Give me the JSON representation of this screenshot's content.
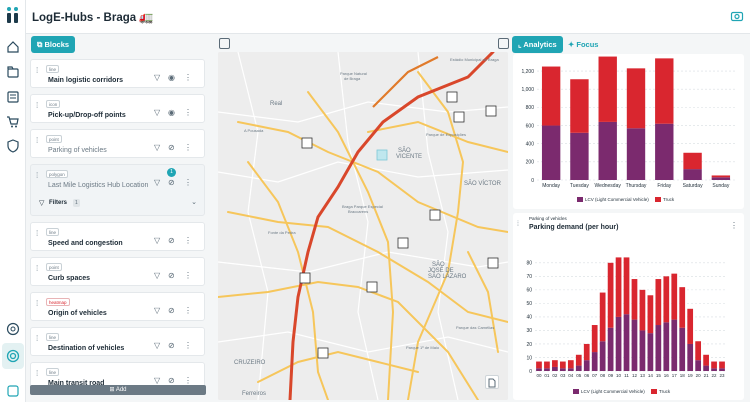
{
  "app": {
    "title": "LogE-Hubs - Braga 🚛"
  },
  "nav": {
    "icons": [
      "home-icon",
      "folders-icon",
      "news-icon",
      "cart-icon",
      "shield-icon",
      "help-icon",
      "brand-icon",
      "compass-icon"
    ]
  },
  "toolbar": {
    "blocks_label": "Blocks",
    "analytics_label": "Analytics",
    "focus_label": "Focus"
  },
  "layers": [
    {
      "tag": "line",
      "label": "Main logistic corridors",
      "visible": true
    },
    {
      "tag": "icon",
      "label": "Pick-up/Drop-off points",
      "visible": true
    },
    {
      "tag": "point",
      "label": "Parking of vehicles",
      "visible": false
    },
    {
      "tag": "polygon",
      "label": "Last Mile Logistics Hub Location",
      "visible": false,
      "badge": "1"
    },
    {
      "tag": "line",
      "label": "Speed and congestion",
      "visible": false
    },
    {
      "tag": "point",
      "label": "Curb spaces",
      "visible": false
    },
    {
      "tag": "heatmap",
      "label": "Origin of vehicles",
      "visible": false
    },
    {
      "tag": "line",
      "label": "Destination of vehicles",
      "visible": false
    },
    {
      "tag": "line",
      "label": "Main transit road",
      "visible": false
    }
  ],
  "filters": {
    "label": "Filters",
    "count": "1"
  },
  "add_label": "Add",
  "map": {
    "labels": [
      "Real",
      "São Vicente",
      "São Victor",
      "Parque Natural de Braga",
      "Parque de Exposições",
      "Fonte da Pedra",
      "Braga Parque Especial Braccarens",
      "São José de São Lázaro",
      "Parque 1º de Maio",
      "Cruzeiro",
      "Ferreiros",
      "Parque das Camélias",
      "Estádio Municipal de Braga",
      "A Pousada"
    ]
  },
  "colors": {
    "accent": "#20a5b4",
    "lcv": "#7b2a6e",
    "truck": "#d9262f"
  },
  "chart_data": [
    {
      "type": "bar",
      "title": "",
      "categories": [
        "Monday",
        "Tuesday",
        "Wednesday",
        "Thursday",
        "Friday",
        "Saturday",
        "Sunday"
      ],
      "series": [
        {
          "name": "LCV (Light Commercial Vehicle)",
          "values": [
            600,
            520,
            640,
            570,
            620,
            120,
            30
          ]
        },
        {
          "name": "Truck",
          "values": [
            650,
            590,
            720,
            660,
            720,
            180,
            20
          ]
        }
      ],
      "yticks": [
        "0",
        "200",
        "400",
        "600",
        "800",
        "1,000",
        "1,200"
      ],
      "ylim": [
        0,
        1300
      ],
      "stacked": true,
      "legend": "bottom"
    },
    {
      "type": "bar",
      "subtitle": "Parking of vehicles",
      "title": "Parking demand (per hour)",
      "categories": [
        "00",
        "01",
        "02",
        "03",
        "04",
        "05",
        "06",
        "07",
        "08",
        "09",
        "10",
        "11",
        "12",
        "13",
        "14",
        "15",
        "16",
        "17",
        "18",
        "19",
        "20",
        "21",
        "22",
        "23"
      ],
      "series": [
        {
          "name": "LCV (Light Commercial Vehicle)",
          "values": [
            2,
            2,
            3,
            2,
            2,
            4,
            8,
            14,
            22,
            32,
            40,
            42,
            38,
            30,
            28,
            34,
            36,
            38,
            32,
            20,
            8,
            4,
            2,
            2
          ]
        },
        {
          "name": "Truck",
          "values": [
            5,
            5,
            5,
            5,
            6,
            8,
            12,
            20,
            36,
            48,
            44,
            42,
            30,
            30,
            28,
            34,
            34,
            34,
            30,
            26,
            14,
            8,
            5,
            5
          ]
        }
      ],
      "yticks": [
        "0",
        "10",
        "20",
        "30",
        "40",
        "50",
        "60",
        "70",
        "80"
      ],
      "ylim": [
        0,
        88
      ],
      "stacked": true,
      "legend": "bottom"
    }
  ]
}
